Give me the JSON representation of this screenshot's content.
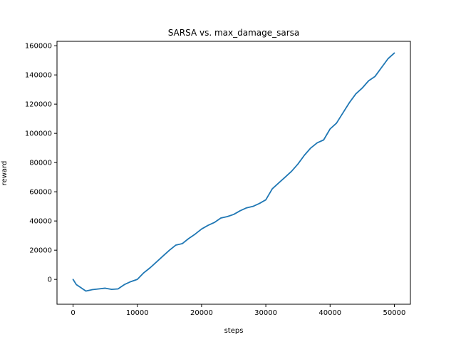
{
  "chart_data": {
    "type": "line",
    "title": "SARSA vs. max_damage_sarsa",
    "xlabel": "steps",
    "ylabel": "reward",
    "xlim": [
      -2500,
      52500
    ],
    "ylim": [
      -17000,
      163000
    ],
    "xticks": [
      0,
      10000,
      20000,
      30000,
      40000,
      50000
    ],
    "xtick_labels": [
      "0",
      "10000",
      "20000",
      "30000",
      "40000",
      "50000"
    ],
    "yticks": [
      0,
      20000,
      40000,
      60000,
      80000,
      100000,
      120000,
      140000,
      160000
    ],
    "ytick_labels": [
      "0",
      "20000",
      "40000",
      "60000",
      "80000",
      "100000",
      "120000",
      "140000",
      "160000"
    ],
    "grid": false,
    "legend": "none",
    "series": [
      {
        "color": "#1f77b4",
        "x": [
          0,
          500,
          1000,
          1500,
          2000,
          2500,
          3000,
          4000,
          5000,
          6000,
          7000,
          7500,
          8000,
          9000,
          10000,
          11000,
          12000,
          13000,
          14000,
          15000,
          16000,
          17000,
          18000,
          19000,
          20000,
          21000,
          22000,
          23000,
          24000,
          25000,
          26000,
          27000,
          28000,
          29000,
          30000,
          31000,
          32000,
          33000,
          34000,
          35000,
          36000,
          37000,
          38000,
          39000,
          40000,
          41000,
          42000,
          43000,
          44000,
          45000,
          46000,
          47000,
          48000,
          49000,
          50000
        ],
        "y": [
          0,
          -3500,
          -5000,
          -6500,
          -8000,
          -7500,
          -7000,
          -6500,
          -6000,
          -6800,
          -6500,
          -5000,
          -3500,
          -1500,
          0,
          4500,
          8000,
          12000,
          16000,
          20000,
          23500,
          24500,
          28000,
          31000,
          34500,
          37000,
          39000,
          42000,
          43000,
          44500,
          47000,
          49000,
          50000,
          52000,
          54500,
          62000,
          66000,
          70000,
          74000,
          79000,
          85000,
          90000,
          93500,
          95500,
          103000,
          107000,
          114000,
          121000,
          127000,
          131000,
          136000,
          139000,
          145000,
          151000,
          155000
        ]
      }
    ]
  }
}
